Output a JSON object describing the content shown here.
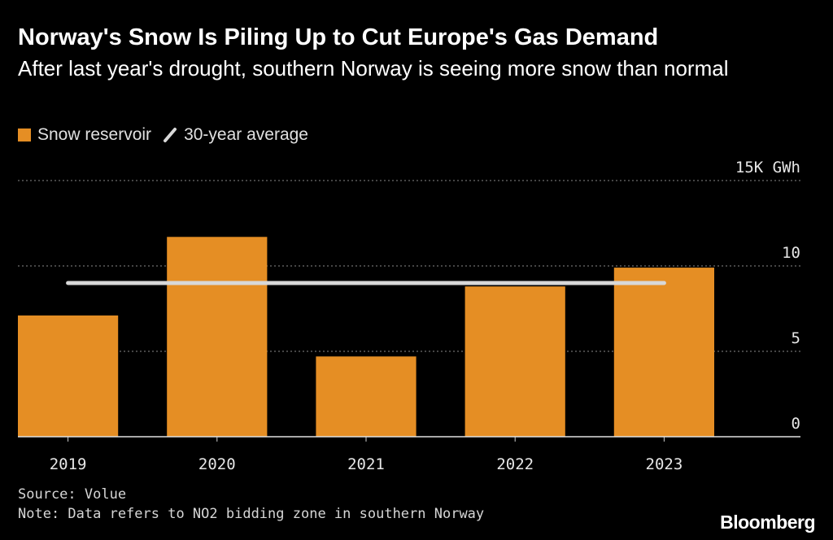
{
  "header": {
    "title": "Norway's Snow Is Piling Up to Cut Europe's Gas Demand",
    "subtitle": "After last year's drought, southern Norway is seeing more snow than normal"
  },
  "legend": {
    "items": [
      {
        "label": "Snow reservoir",
        "kind": "bar",
        "color": "#e58e24"
      },
      {
        "label": "30-year average",
        "kind": "line",
        "color": "#d8d8d8"
      }
    ]
  },
  "footer": {
    "source": "Source: Volue",
    "note": "Note: Data refers to NO2 bidding zone in southern Norway",
    "brand": "Bloomberg"
  },
  "chart_data": {
    "type": "bar",
    "title": "Norway's Snow Is Piling Up to Cut Europe's Gas Demand",
    "subtitle": "After last year's drought, southern Norway is seeing more snow than normal",
    "categories": [
      "2019",
      "2020",
      "2021",
      "2022",
      "2023"
    ],
    "series": [
      {
        "name": "Snow reservoir",
        "values": [
          7.1,
          11.7,
          4.7,
          8.8,
          9.9
        ],
        "color": "#e58e24"
      }
    ],
    "reference_lines": [
      {
        "name": "30-year average",
        "value": 9.0,
        "color": "#d8d8d8"
      }
    ],
    "y_axis": {
      "range": [
        0,
        15
      ],
      "ticks": [
        0,
        5,
        10,
        15
      ],
      "tick_labels": [
        "0",
        "5",
        "10",
        "15K GWh"
      ],
      "unit": "K GWh",
      "position": "right",
      "grid": "dotted"
    },
    "xlabel": "",
    "ylabel": "",
    "legend_position": "top-left"
  }
}
